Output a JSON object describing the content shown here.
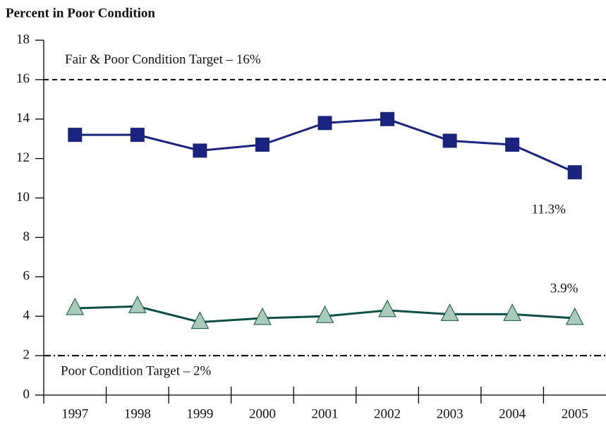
{
  "chart_data": {
    "type": "line",
    "title": "Percent in Poor Condition",
    "categories": [
      "1997",
      "1998",
      "1999",
      "2000",
      "2001",
      "2002",
      "2003",
      "2004",
      "2005"
    ],
    "series": [
      {
        "name": "Fair & Poor Condition",
        "color": "#1a237e",
        "marker": "square",
        "values": [
          13.2,
          13.2,
          12.4,
          12.7,
          13.8,
          14.0,
          12.9,
          12.7,
          11.3
        ],
        "value_labels": [
          null,
          null,
          null,
          null,
          null,
          null,
          null,
          null,
          "11.3%"
        ]
      },
      {
        "name": "Poor Condition",
        "color": "#0d4f45",
        "marker": "triangle",
        "marker_fill": "#a9cbb9",
        "values": [
          4.4,
          4.5,
          3.7,
          3.9,
          4.0,
          4.3,
          4.1,
          4.1,
          3.9
        ],
        "value_labels": [
          null,
          null,
          null,
          null,
          null,
          null,
          null,
          null,
          "3.9%"
        ]
      }
    ],
    "reference_lines": [
      {
        "value": 16,
        "label": "Fair & Poor Condition Target – 16%",
        "style": "dashed"
      },
      {
        "value": 2,
        "label": "Poor Condition Target – 2%",
        "style": "dashdot"
      }
    ],
    "ylim": [
      0,
      18
    ],
    "yticks": [
      0,
      2,
      4,
      6,
      8,
      10,
      12,
      14,
      16,
      18
    ],
    "grid": false
  }
}
